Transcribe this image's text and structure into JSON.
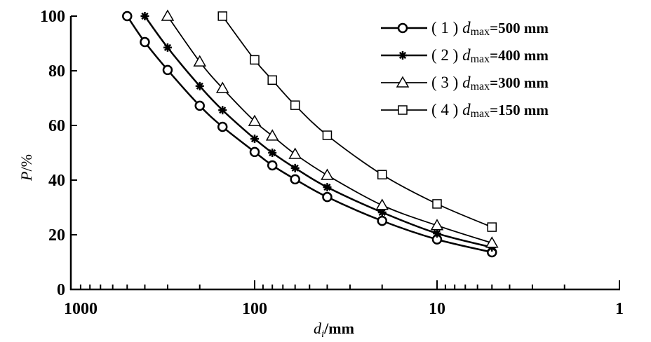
{
  "chart_data": {
    "type": "line",
    "title": "",
    "xlabel": {
      "var": "d",
      "sub": "i",
      "unit": "/mm"
    },
    "ylabel": {
      "var": "P",
      "unit": "/%"
    },
    "xscale": "log",
    "x_reversed": true,
    "xlim": [
      1000,
      1
    ],
    "ylim": [
      0,
      100
    ],
    "xticks": [
      1000,
      100,
      10,
      1
    ],
    "xtick_labels": [
      "1000",
      "100",
      "10",
      "1"
    ],
    "yticks": [
      0,
      20,
      40,
      60,
      80,
      100
    ],
    "ytick_labels": [
      "0",
      "20",
      "40",
      "60",
      "80",
      "100"
    ],
    "grid": false,
    "legend_position": "top-right",
    "series": [
      {
        "name": "(1) dmax=500 mm",
        "label_prefix": "( 1 )",
        "label_var": "d",
        "label_sub": "max",
        "label_value": "=500 mm",
        "marker": "circle",
        "heavy": true,
        "x": [
          500,
          400,
          300,
          200,
          150,
          100,
          80,
          60,
          40,
          20,
          10,
          5
        ],
        "y": [
          100,
          90.5,
          80.3,
          67.2,
          59.5,
          50.3,
          45.4,
          40.3,
          33.8,
          25.1,
          18.3,
          13.6
        ]
      },
      {
        "name": "(2) dmax=400 mm",
        "label_prefix": "( 2 )",
        "label_var": "d",
        "label_sub": "max",
        "label_value": "=400 mm",
        "marker": "star",
        "heavy": true,
        "x": [
          400,
          300,
          200,
          150,
          100,
          80,
          60,
          40,
          20,
          10,
          5
        ],
        "y": [
          100,
          88.5,
          74.4,
          65.6,
          55.1,
          50.0,
          44.4,
          37.4,
          28.2,
          20.5,
          15.4
        ]
      },
      {
        "name": "(3) dmax=300 mm",
        "label_prefix": "( 3 )",
        "label_var": "d",
        "label_sub": "max",
        "label_value": "=300 mm",
        "marker": "triangle",
        "heavy": false,
        "x": [
          300,
          200,
          150,
          100,
          80,
          60,
          40,
          20,
          10,
          5
        ],
        "y": [
          100,
          83.3,
          73.6,
          61.5,
          56.2,
          49.5,
          41.8,
          30.8,
          23.4,
          17.0
        ]
      },
      {
        "name": "(4) dmax=150 mm",
        "label_prefix": "( 4 )",
        "label_var": "d",
        "label_sub": "max",
        "label_value": "=150 mm",
        "marker": "square",
        "heavy": false,
        "x": [
          150,
          100,
          80,
          60,
          40,
          20,
          10,
          5
        ],
        "y": [
          100,
          84.0,
          76.6,
          67.4,
          56.4,
          42.0,
          31.3,
          22.8
        ]
      }
    ]
  }
}
